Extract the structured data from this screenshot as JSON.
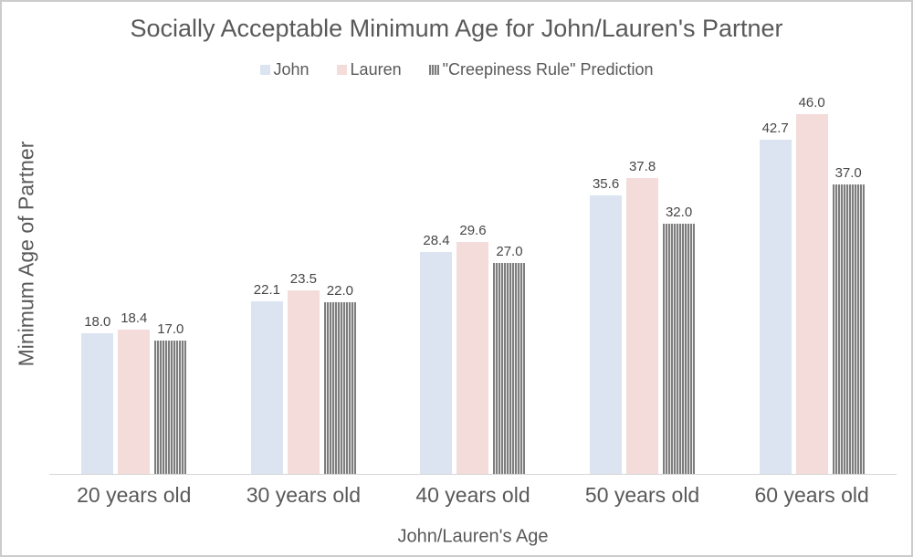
{
  "title": "Socially Acceptable Minimum Age for John/Lauren's Partner",
  "chart_data": {
    "type": "bar",
    "title": "Socially Acceptable Minimum Age for John/Lauren's Partner",
    "xlabel": "John/Lauren's Age",
    "ylabel": "Minimum Age of Partner",
    "categories": [
      "20 years old",
      "30 years old",
      "40 years old",
      "50 years old",
      "60 years old"
    ],
    "series": [
      {
        "name": "John",
        "color": "#dbe4f0",
        "texture": "solid",
        "values": [
          18.0,
          22.1,
          28.4,
          35.6,
          42.7
        ]
      },
      {
        "name": "Lauren",
        "color": "#f3dcda",
        "texture": "solid",
        "values": [
          18.4,
          23.5,
          29.6,
          37.8,
          46.0
        ]
      },
      {
        "name": "\"Creepiness Rule\" Prediction",
        "color": "#7e7e7e",
        "texture": "vertical-stripes",
        "values": [
          17.0,
          22.0,
          27.0,
          32.0,
          37.0
        ]
      }
    ],
    "ylim": [
      0,
      46
    ],
    "value_labels": true,
    "value_label_format": "one-decimal",
    "legend_position": "top",
    "grid": false,
    "y_axis_ticks_visible": false
  }
}
